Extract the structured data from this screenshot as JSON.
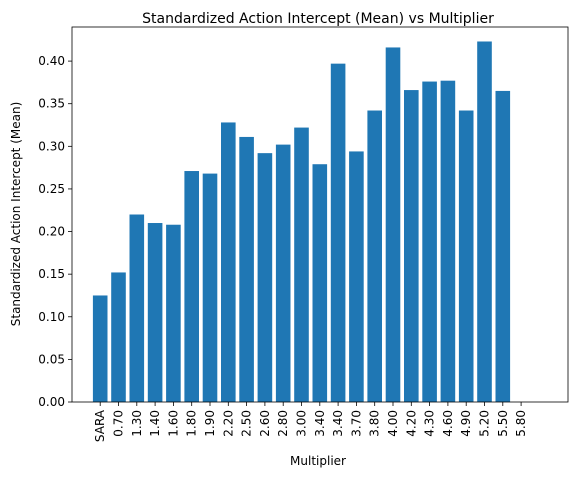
{
  "chart_data": {
    "type": "bar",
    "title": "Standardized Action Intercept (Mean) vs Multiplier",
    "xlabel": "Multiplier",
    "ylabel": "Standardized Action Intercept (Mean)",
    "categories": [
      "SARA",
      "0.70",
      "1.30",
      "1.40",
      "1.60",
      "1.80",
      "1.90",
      "2.20",
      "2.50",
      "2.60",
      "2.80",
      "3.00",
      "3.40",
      "3.40",
      "3.70",
      "3.80",
      "4.00",
      "4.20",
      "4.30",
      "4.60",
      "4.90",
      "5.20",
      "5.50",
      "5.80"
    ],
    "values": [
      0.125,
      0.152,
      0.22,
      0.21,
      0.208,
      0.271,
      0.268,
      0.328,
      0.311,
      0.292,
      0.302,
      0.322,
      0.279,
      0.397,
      0.294,
      0.342,
      0.416,
      0.366,
      0.376,
      0.377,
      0.342,
      0.423,
      0.365,
      0.0
    ],
    "ylim": [
      0,
      0.44
    ],
    "yticks": [
      "0.00",
      "0.05",
      "0.10",
      "0.15",
      "0.20",
      "0.25",
      "0.30",
      "0.35",
      "0.40"
    ],
    "bar_color": "#1f77b4",
    "grid": false,
    "legend": "none"
  }
}
